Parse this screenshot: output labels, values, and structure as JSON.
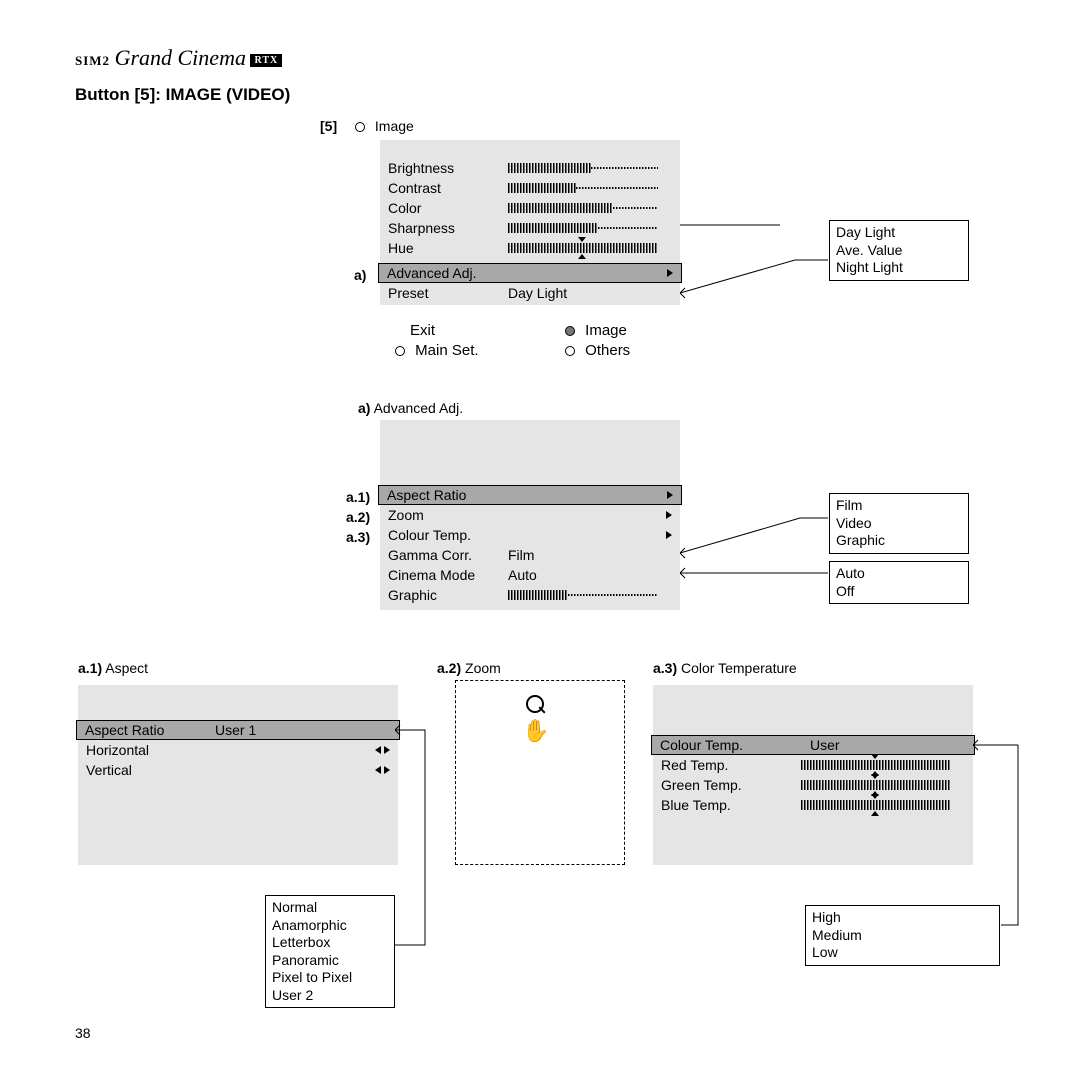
{
  "logo": {
    "prefix": "SIM2",
    "script": "Grand Cinema",
    "badge": "RTX"
  },
  "pageTitle": "Button [5]: IMAGE (VIDEO)",
  "pageNumber": "38",
  "panelMain": {
    "tag": "[5]",
    "header": "Image",
    "headerBulletType": "empty",
    "sliders": [
      {
        "label": "Brightness",
        "fill": 55
      },
      {
        "label": "Contrast",
        "fill": 45
      },
      {
        "label": "Color",
        "fill": 70
      },
      {
        "label": "Sharpness",
        "fill": 60
      },
      {
        "label": "Hue",
        "centerFill": true
      }
    ],
    "annoA": "a)",
    "selectedRow": {
      "label": "Advanced Adj."
    },
    "presetRow": {
      "label": "Preset",
      "value": "Day Light"
    },
    "footer": {
      "exit": "Exit",
      "mainSet": "Main Set.",
      "image": "Image",
      "others": "Others"
    }
  },
  "calloutPreset": [
    "Day Light",
    "Ave. Value",
    "Night Light"
  ],
  "panelAdvanced": {
    "heading": {
      "tag": "a)",
      "label": "Advanced Adj."
    },
    "anno": {
      "a1": "a.1)",
      "a2": "a.2)",
      "a3": "a.3)"
    },
    "rows": {
      "aspect": "Aspect Ratio",
      "zoom": "Zoom",
      "colourTemp": "Colour Temp.",
      "gamma": {
        "label": "Gamma Corr.",
        "value": "Film"
      },
      "cinema": {
        "label": "Cinema Mode",
        "value": "Auto"
      },
      "graphic": {
        "label": "Graphic"
      }
    }
  },
  "calloutGamma": [
    "Film",
    "Video",
    "Graphic"
  ],
  "calloutCinema": [
    "Auto",
    "Off"
  ],
  "sectionA1": {
    "heading": {
      "tag": "a.1)",
      "label": "Aspect"
    },
    "selected": {
      "label": "Aspect Ratio",
      "value": "User 1"
    },
    "rows": [
      "Horizontal",
      "Vertical"
    ],
    "options": [
      "Normal",
      "Anamorphic",
      "Letterbox",
      "Panoramic",
      "Pixel to Pixel",
      "User 2"
    ]
  },
  "sectionA2": {
    "heading": {
      "tag": "a.2)",
      "label": "Zoom"
    }
  },
  "sectionA3": {
    "heading": {
      "tag": "a.3)",
      "label": "Color Temperature"
    },
    "selected": {
      "label": "Colour Temp.",
      "value": "User"
    },
    "sliders": [
      {
        "label": "Red Temp."
      },
      {
        "label": "Green Temp."
      },
      {
        "label": "Blue Temp."
      }
    ],
    "options": [
      "High",
      "Medium",
      "Low"
    ]
  }
}
